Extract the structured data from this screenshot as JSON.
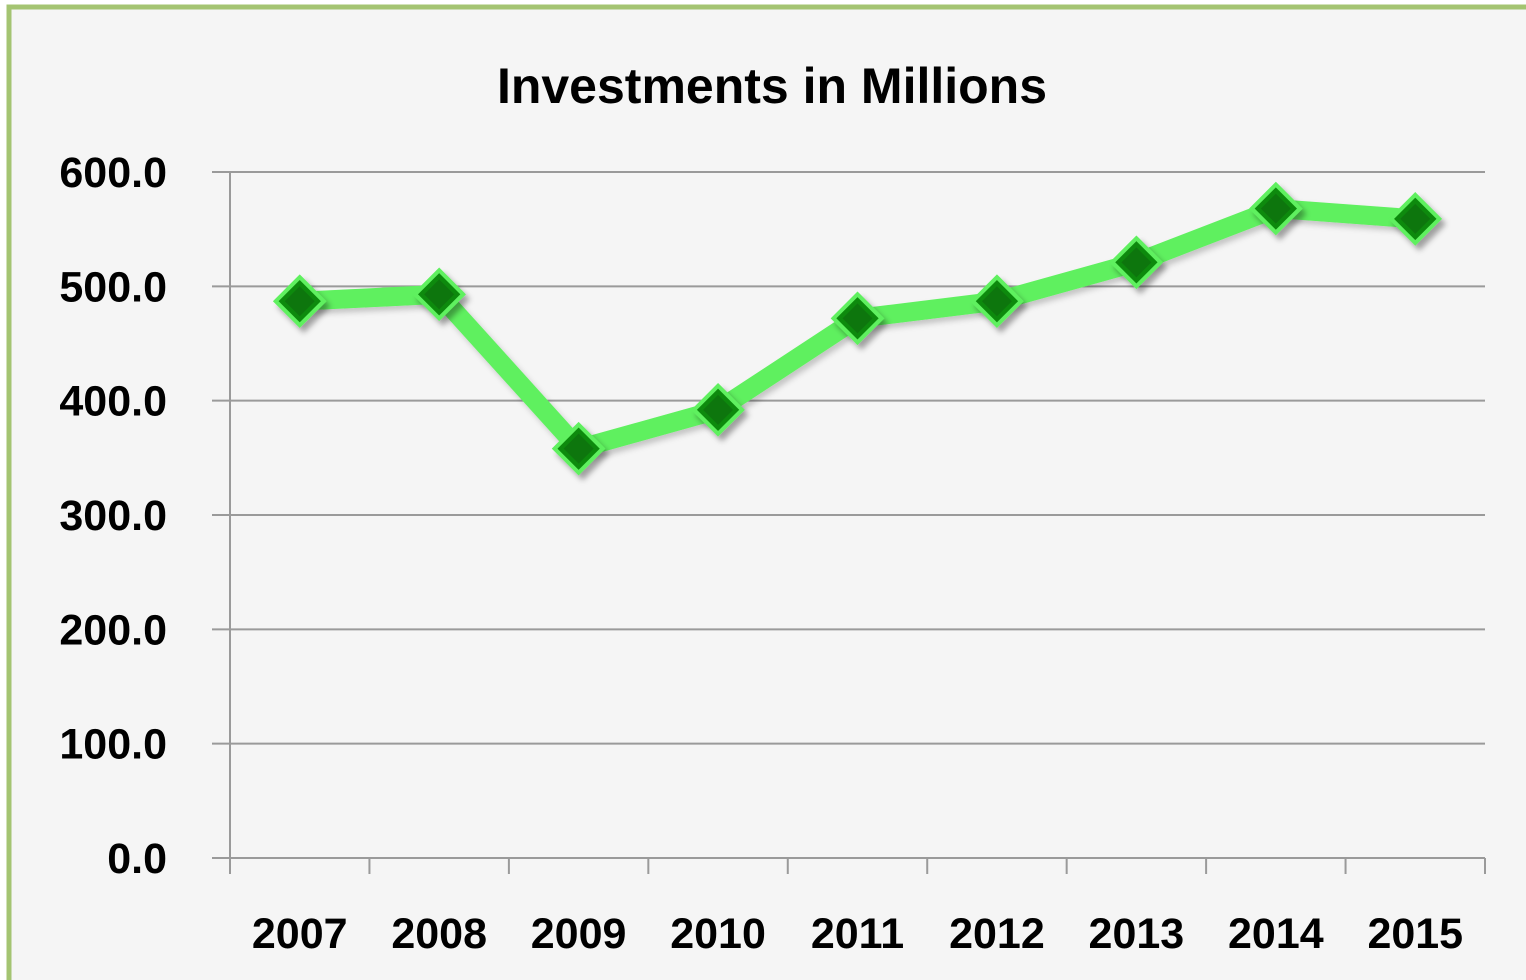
{
  "chart_data": {
    "type": "line",
    "title": "Investments in Millions",
    "xlabel": "",
    "ylabel": "",
    "categories": [
      "2007",
      "2008",
      "2009",
      "2010",
      "2011",
      "2012",
      "2013",
      "2014",
      "2015"
    ],
    "series": [
      {
        "values": [
          487,
          493,
          358,
          392,
          472,
          487,
          521,
          568,
          559
        ]
      }
    ],
    "y_ticks": [
      "0.0",
      "100.0",
      "200.0",
      "300.0",
      "400.0",
      "500.0",
      "600.0"
    ],
    "ylim": [
      0,
      600
    ],
    "grid": true,
    "legend": "none",
    "colors": {
      "frame_border": "#a4c472",
      "plot_background": "#f5f5f5",
      "gridline": "#9a9a9a",
      "line": "#5ef05e",
      "marker_fill": "#0b8a0b",
      "marker_dark": "#056105"
    },
    "marker_shape": "diamond-icon"
  }
}
